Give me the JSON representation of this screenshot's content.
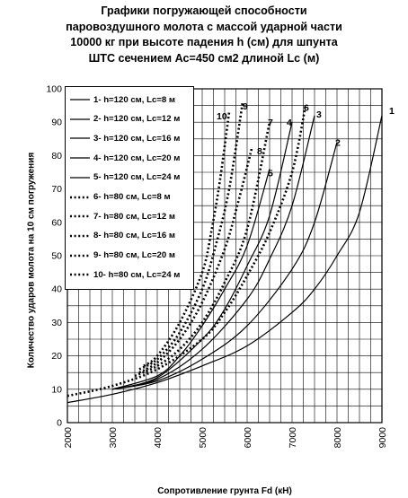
{
  "chart_data": {
    "type": "line",
    "title_lines": [
      "Графики погружающей способности",
      "паровоздушного молота с массой ударной части",
      "10000 кг при высоте падения h (см) для шпунта",
      "ШТС сечением Ас=450 см2  длиной Lc (м)"
    ],
    "xlabel": "Сопротивление грунта Fd (кН)",
    "ylabel": "Количество ударов молота на 10 см погружения",
    "xlim": [
      2000,
      9000
    ],
    "ylim": [
      0,
      100
    ],
    "x_ticks": [
      "2000",
      "3000",
      "4000",
      "5000",
      "6000",
      "7000",
      "8000",
      "9000"
    ],
    "y_ticks": [
      "0",
      "10",
      "20",
      "30",
      "40",
      "50",
      "60",
      "70",
      "80",
      "90",
      "100"
    ],
    "grid": true,
    "legend_position": "top-left",
    "series": [
      {
        "name": "1- h=120 см, Lc=8 м",
        "curve_label": "1",
        "style": "solid",
        "x": [
          2000,
          3000,
          4000,
          5000,
          6000,
          7000,
          7500,
          8000,
          8500,
          9000
        ],
        "y": [
          6,
          8.5,
          12,
          17,
          23,
          33,
          40,
          50,
          63,
          92
        ]
      },
      {
        "name": "2- h=120 см, Lc=12 м",
        "curve_label": "2",
        "style": "solid",
        "x": [
          3000,
          4000,
          5000,
          6000,
          7000,
          7500,
          8000
        ],
        "y": [
          10,
          12.5,
          19,
          29,
          46,
          60,
          84
        ]
      },
      {
        "name": "3- h=120 см, Lc=16 м",
        "curve_label": "3",
        "style": "solid",
        "x": [
          3000,
          4000,
          5000,
          6000,
          6500,
          7000,
          7500
        ],
        "y": [
          10,
          13,
          22,
          37,
          49,
          65,
          92
        ]
      },
      {
        "name": "4- h=120 см, Lc=20 м",
        "curve_label": "4",
        "style": "solid",
        "x": [
          3000,
          4000,
          5000,
          5500,
          6000,
          6500,
          7000
        ],
        "y": [
          10,
          13.5,
          25,
          34,
          47,
          62,
          90
        ]
      },
      {
        "name": "5- h=120 см, Lc=24 м",
        "curve_label": "5",
        "style": "solid",
        "x": [
          3000,
          4000,
          4500,
          5000,
          5500,
          6000,
          6500
        ],
        "y": [
          10,
          14,
          20,
          29,
          40,
          53,
          76
        ]
      },
      {
        "name": "6- h=80 см, Lc=8 м",
        "curve_label": "6",
        "style": "dotted",
        "x": [
          2000,
          3000,
          4000,
          5000,
          5500,
          6000,
          6500,
          7000,
          7300
        ],
        "y": [
          8,
          11,
          16,
          25,
          33,
          44,
          57,
          75,
          95
        ]
      },
      {
        "name": "7- h=80 см, Lc=12 м",
        "curve_label": "7",
        "style": "dotted",
        "x": [
          3500,
          4000,
          4500,
          5000,
          5500,
          6000,
          6500
        ],
        "y": [
          14,
          17,
          22,
          30,
          42,
          58,
          90
        ]
      },
      {
        "name": "8- h=80 см, Lc=16 м",
        "curve_label": "8",
        "style": "dotted",
        "x": [
          3600,
          4000,
          4500,
          5000,
          5500,
          5800,
          6100
        ],
        "y": [
          15,
          18,
          25,
          36,
          52,
          66,
          82
        ]
      },
      {
        "name": "9- h=80 см, Lc=20 м",
        "curve_label": "9",
        "style": "dotted",
        "x": [
          3600,
          4000,
          4500,
          5000,
          5300,
          5600,
          5900
        ],
        "y": [
          16,
          19,
          27,
          40,
          53,
          70,
          96
        ]
      },
      {
        "name": "10- h=80 см, Lc=24 м",
        "curve_label": "10",
        "style": "dotted",
        "x": [
          3700,
          4000,
          4500,
          5000,
          5200,
          5400,
          5600
        ],
        "y": [
          17,
          20,
          30,
          45,
          57,
          73,
          93
        ]
      }
    ]
  }
}
